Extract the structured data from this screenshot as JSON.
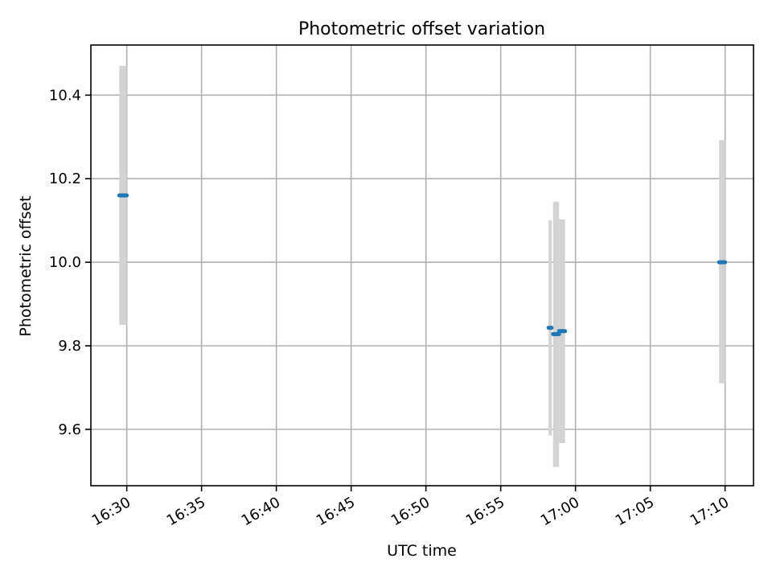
{
  "chart_data": {
    "type": "scatter",
    "title": "Photometric offset variation",
    "xlabel": "UTC time",
    "ylabel": "Photometric offset",
    "x_ticks": [
      "16:30",
      "16:35",
      "16:40",
      "16:45",
      "16:50",
      "16:55",
      "17:00",
      "17:05",
      "17:10"
    ],
    "y_ticks": [
      "9.6",
      "9.8",
      "10.0",
      "10.2",
      "10.4"
    ],
    "xlim": [
      "16:27:36",
      "17:11:54"
    ],
    "ylim": [
      9.465,
      10.52
    ],
    "grid": true,
    "series": [
      {
        "points": [
          {
            "t_start": "16:29:30",
            "t_end": "16:30:00",
            "y": 10.16,
            "err_low": 9.85,
            "err_high": 10.47
          },
          {
            "t_start": "16:58:12",
            "t_end": "16:58:24",
            "y": 9.843,
            "err_low": 9.585,
            "err_high": 10.1
          },
          {
            "t_start": "16:58:30",
            "t_end": "16:58:54",
            "y": 9.828,
            "err_low": 9.51,
            "err_high": 10.145
          },
          {
            "t_start": "16:58:54",
            "t_end": "16:59:18",
            "y": 9.835,
            "err_low": 9.567,
            "err_high": 10.103
          },
          {
            "t_start": "17:09:36",
            "t_end": "17:10:00",
            "y": 10.0,
            "err_low": 9.71,
            "err_high": 10.292
          }
        ]
      }
    ],
    "colors": {
      "points": "#1f77b4",
      "error_bars": "#d3d3d3"
    }
  }
}
